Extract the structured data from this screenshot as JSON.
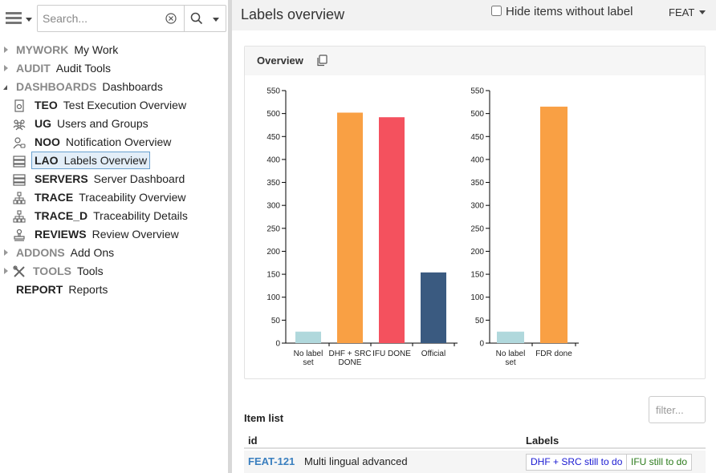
{
  "search": {
    "placeholder": "Search..."
  },
  "tree": [
    {
      "code": "MYWORK",
      "label": "My Work",
      "state": "closed",
      "level": 0
    },
    {
      "code": "AUDIT",
      "label": "Audit Tools",
      "state": "closed",
      "level": 0
    },
    {
      "code": "DASHBOARDS",
      "label": "Dashboards",
      "state": "open",
      "level": 0
    },
    {
      "code": "TEO",
      "label": "Test Execution Overview",
      "icon": "document-gear-icon",
      "level": 1
    },
    {
      "code": "UG",
      "label": "Users and Groups",
      "icon": "users-group-icon",
      "level": 1
    },
    {
      "code": "NOO",
      "label": "Notification Overview",
      "icon": "user-bell-icon",
      "level": 1
    },
    {
      "code": "LAO",
      "label": "Labels Overview",
      "icon": "server-stack-icon",
      "level": 1,
      "selected": true
    },
    {
      "code": "SERVERS",
      "label": "Server Dashboard",
      "icon": "server-stack-icon",
      "level": 1
    },
    {
      "code": "TRACE",
      "label": "Traceability Overview",
      "icon": "hierarchy-icon",
      "level": 1
    },
    {
      "code": "TRACE_D",
      "label": "Traceability Details",
      "icon": "hierarchy-icon",
      "level": 1
    },
    {
      "code": "REVIEWS",
      "label": "Review Overview",
      "icon": "stamp-icon",
      "level": 1
    },
    {
      "code": "ADDONS",
      "label": "Add Ons",
      "state": "closed",
      "level": 0
    },
    {
      "code": "TOOLS",
      "label": "Tools",
      "state": "closed",
      "level": 0,
      "icon": "tools-icon"
    },
    {
      "code": "REPORT",
      "label": "Reports",
      "level": 0
    }
  ],
  "header": {
    "title": "Labels overview",
    "hide_checkbox_label": "Hide items without label",
    "category": "FEAT"
  },
  "overview": {
    "title": "Overview"
  },
  "chart_data": [
    {
      "type": "bar",
      "categories": [
        "No label set",
        "DHF + SRC DONE",
        "IFU DONE",
        "Official"
      ],
      "values": [
        25,
        502,
        492,
        154
      ],
      "colors": [
        "#b0d8dc",
        "#f9a044",
        "#f4515e",
        "#3a5a80"
      ],
      "ylim": [
        0,
        550
      ],
      "yticks": [
        0,
        50,
        100,
        150,
        200,
        250,
        300,
        350,
        400,
        450,
        500,
        550
      ]
    },
    {
      "type": "bar",
      "categories": [
        "No label set",
        "FDR done"
      ],
      "values": [
        25,
        515
      ],
      "colors": [
        "#b0d8dc",
        "#f9a044"
      ],
      "ylim": [
        0,
        550
      ],
      "yticks": [
        0,
        50,
        100,
        150,
        200,
        250,
        300,
        350,
        400,
        450,
        500,
        550
      ]
    }
  ],
  "items": {
    "title": "Item list",
    "filter_placeholder": "filter...",
    "columns": {
      "id": "id",
      "labels": "Labels"
    },
    "rows": [
      {
        "id": "FEAT-121",
        "title": "Multi lingual advanced",
        "labels": [
          "DHF + SRC still to do",
          "IFU still to do"
        ]
      }
    ]
  }
}
